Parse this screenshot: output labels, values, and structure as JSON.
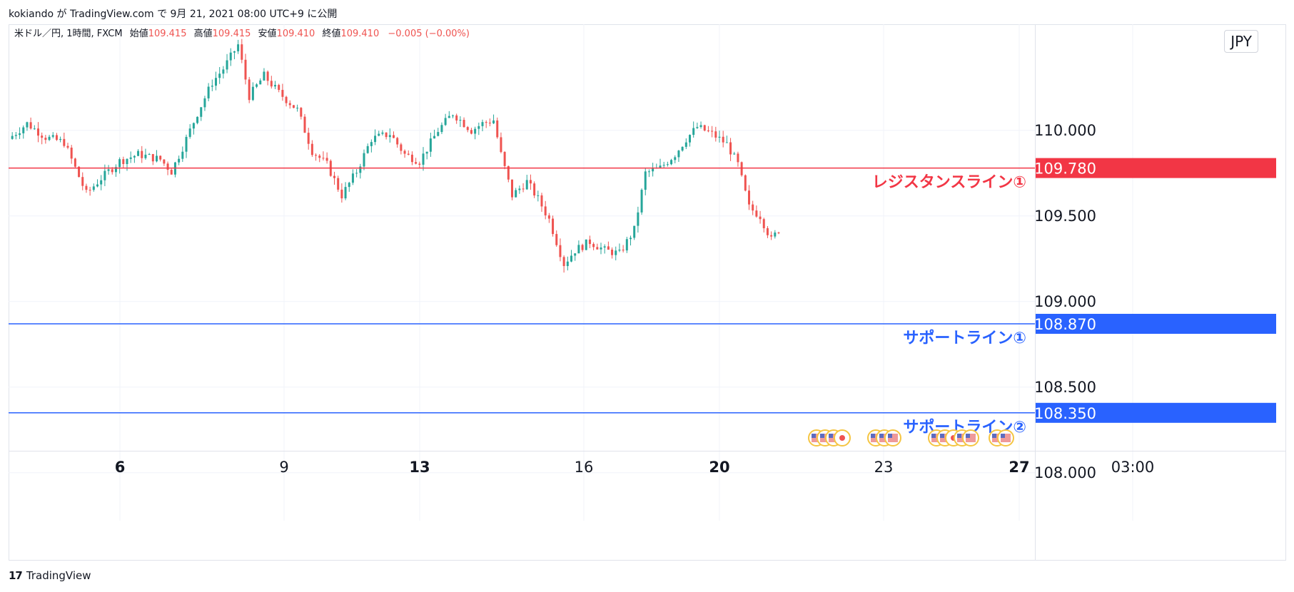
{
  "caption": "kokiando が TradingView.com で 9月 21, 2021 08:00 UTC+9 に公開",
  "legend": {
    "symbol": "米ドル／円, 1時間, FXCM",
    "open_label": "始値",
    "open": "109.415",
    "high_label": "高値",
    "high": "109.415",
    "low_label": "安値",
    "low": "109.410",
    "close_label": "終値",
    "close": "109.410",
    "change": "−0.005 (−0.00%)"
  },
  "currency_button": "JPY",
  "footer_brand": "TradingView",
  "colors": {
    "up": "#26a69a",
    "down": "#ef5350",
    "resistance": "#f23645",
    "support": "#2962ff",
    "grid": "#f0f3fa"
  },
  "chart_data": {
    "type": "candlestick",
    "ylim": [
      107.72,
      110.62
    ],
    "y_ticks": [
      "110.000",
      "109.500",
      "109.000",
      "108.500",
      "108.000"
    ],
    "x_ticks": [
      {
        "label": "6",
        "bold": true
      },
      {
        "label": "9",
        "bold": false
      },
      {
        "label": "13",
        "bold": true
      },
      {
        "label": "16",
        "bold": false
      },
      {
        "label": "20",
        "bold": true
      },
      {
        "label": "23",
        "bold": false
      },
      {
        "label": "27",
        "bold": true
      },
      {
        "label": "03:00",
        "bold": false
      }
    ],
    "price_path": [
      [
        0,
        109.95
      ],
      [
        10,
        110.04
      ],
      [
        20,
        109.96
      ],
      [
        30,
        109.93
      ],
      [
        36,
        109.78
      ],
      [
        42,
        109.63
      ],
      [
        50,
        109.72
      ],
      [
        60,
        109.82
      ],
      [
        70,
        109.86
      ],
      [
        82,
        109.83
      ],
      [
        88,
        109.76
      ],
      [
        94,
        109.9
      ],
      [
        102,
        110.1
      ],
      [
        110,
        110.28
      ],
      [
        116,
        110.36
      ],
      [
        124,
        110.5
      ],
      [
        130,
        110.2
      ],
      [
        138,
        110.32
      ],
      [
        146,
        110.22
      ],
      [
        156,
        110.12
      ],
      [
        164,
        109.88
      ],
      [
        172,
        109.8
      ],
      [
        180,
        109.62
      ],
      [
        188,
        109.76
      ],
      [
        196,
        109.95
      ],
      [
        206,
        109.98
      ],
      [
        214,
        109.86
      ],
      [
        222,
        109.82
      ],
      [
        232,
        110.0
      ],
      [
        240,
        110.1
      ],
      [
        250,
        110.0
      ],
      [
        256,
        110.04
      ],
      [
        262,
        110.06
      ],
      [
        266,
        109.86
      ],
      [
        272,
        109.62
      ],
      [
        280,
        109.7
      ],
      [
        286,
        109.6
      ],
      [
        292,
        109.48
      ],
      [
        300,
        109.22
      ],
      [
        306,
        109.3
      ],
      [
        314,
        109.35
      ],
      [
        322,
        109.3
      ],
      [
        330,
        109.28
      ],
      [
        338,
        109.42
      ],
      [
        344,
        109.75
      ],
      [
        352,
        109.78
      ],
      [
        360,
        109.86
      ],
      [
        366,
        109.95
      ],
      [
        372,
        110.02
      ],
      [
        380,
        109.98
      ],
      [
        388,
        109.92
      ],
      [
        394,
        109.8
      ],
      [
        400,
        109.55
      ],
      [
        406,
        109.5
      ],
      [
        412,
        109.36
      ],
      [
        416,
        109.42
      ]
    ],
    "x_domain": [
      0,
      640
    ],
    "events": [
      "us-flag-event-icon",
      "jp-flag-event-icon"
    ],
    "horizontal_lines": [
      {
        "id": "resistance-1",
        "value": 109.78,
        "price_label": "109.780",
        "text": "レジスタンスライン①",
        "color": "#f23645"
      },
      {
        "id": "support-1",
        "value": 108.87,
        "price_label": "108.870",
        "text": "サポートライン①",
        "color": "#2962ff"
      },
      {
        "id": "support-2",
        "value": 108.35,
        "price_label": "108.350",
        "text": "サポートライン②",
        "color": "#2962ff"
      }
    ]
  }
}
